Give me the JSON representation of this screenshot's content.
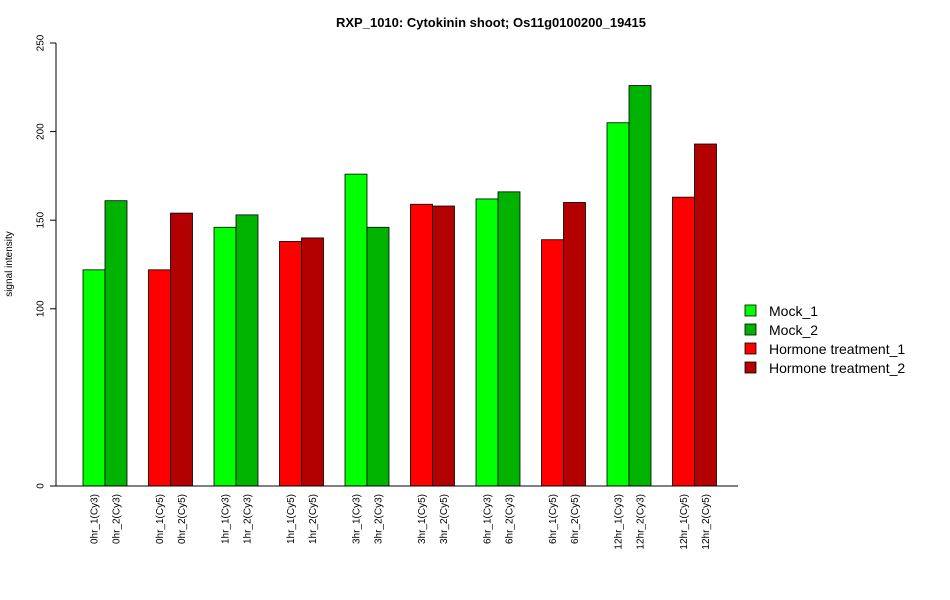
{
  "chart_data": {
    "type": "bar",
    "title": "RXP_1010: Cytokinin shoot; Os11g0100200_19415",
    "ylabel": "signal intensity",
    "xlabel": "",
    "ylim": [
      0,
      250
    ],
    "yticks": [
      {
        "value": 0,
        "label": "0"
      },
      {
        "value": 100,
        "label": "100"
      },
      {
        "value": 150,
        "label": "150"
      },
      {
        "value": 200,
        "label": "200"
      },
      {
        "value": 250,
        "label": "250"
      }
    ],
    "groups": [
      {
        "bars": [
          {
            "label": "0hr_1(Cy3)",
            "value": 122,
            "series": 0
          },
          {
            "label": "0hr_2(Cy3)",
            "value": 161,
            "series": 1
          }
        ]
      },
      {
        "bars": [
          {
            "label": "0hr_1(Cy5)",
            "value": 122,
            "series": 2
          },
          {
            "label": "0hr_2(Cy5)",
            "value": 154,
            "series": 3
          }
        ]
      },
      {
        "bars": [
          {
            "label": "1hr_1(Cy3)",
            "value": 146,
            "series": 0
          },
          {
            "label": "1hr_2(Cy3)",
            "value": 153,
            "series": 1
          }
        ]
      },
      {
        "bars": [
          {
            "label": "1hr_1(Cy5)",
            "value": 138,
            "series": 2
          },
          {
            "label": "1hr_2(Cy5)",
            "value": 140,
            "series": 3
          }
        ]
      },
      {
        "bars": [
          {
            "label": "3hr_1(Cy3)",
            "value": 176,
            "series": 0
          },
          {
            "label": "3hr_2(Cy3)",
            "value": 146,
            "series": 1
          }
        ]
      },
      {
        "bars": [
          {
            "label": "3hr_1(Cy5)",
            "value": 159,
            "series": 2
          },
          {
            "label": "3hr_2(Cy5)",
            "value": 158,
            "series": 3
          }
        ]
      },
      {
        "bars": [
          {
            "label": "6hr_1(Cy3)",
            "value": 162,
            "series": 0
          },
          {
            "label": "6hr_2(Cy3)",
            "value": 166,
            "series": 1
          }
        ]
      },
      {
        "bars": [
          {
            "label": "6hr_1(Cy5)",
            "value": 139,
            "series": 2
          },
          {
            "label": "6hr_2(Cy5)",
            "value": 160,
            "series": 3
          }
        ]
      },
      {
        "bars": [
          {
            "label": "12hr_1(Cy3)",
            "value": 205,
            "series": 0
          },
          {
            "label": "12hr_2(Cy3)",
            "value": 226,
            "series": 1
          }
        ]
      },
      {
        "bars": [
          {
            "label": "12hr_1(Cy5)",
            "value": 163,
            "series": 2
          },
          {
            "label": "12hr_2(Cy5)",
            "value": 193,
            "series": 3
          }
        ]
      }
    ],
    "series": [
      {
        "name": "Mock_1",
        "color": "#00ff00"
      },
      {
        "name": "Mock_2",
        "color": "#00b300"
      },
      {
        "name": "Hormone treatment_1",
        "color": "#ff0000"
      },
      {
        "name": "Hormone treatment_2",
        "color": "#b30000"
      }
    ],
    "legend_position": "right",
    "grid": false
  }
}
